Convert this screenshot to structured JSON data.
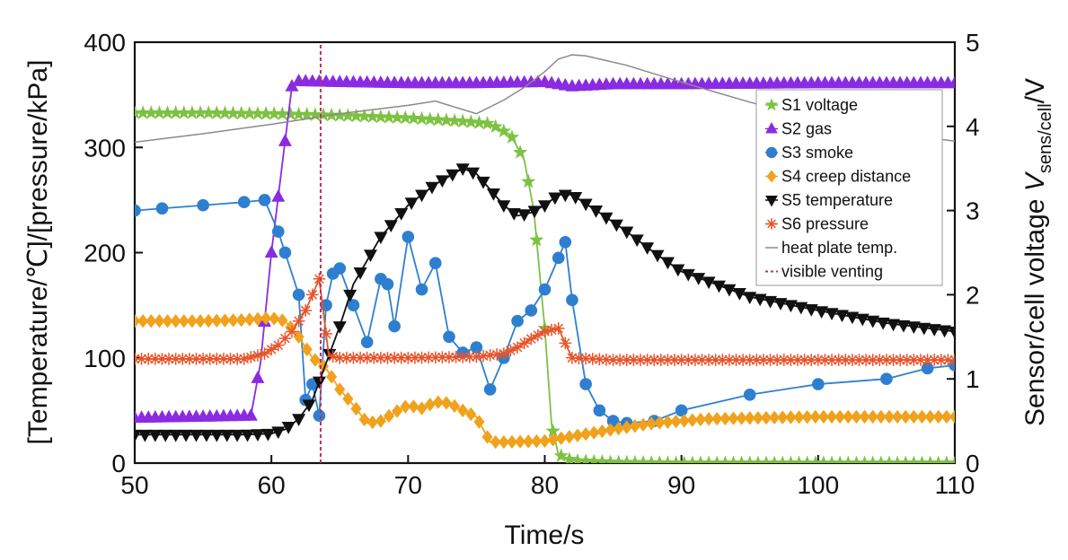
{
  "chart_data": {
    "type": "line",
    "xlabel": "Time/s",
    "ylabel_left": "[Temperature/℃]/[pressure/kPa]",
    "ylabel_right_parts": {
      "prefix": "Sensor/cell voltage ",
      "var": "V",
      "sub": "sens/cell",
      "suffix": "/V"
    },
    "xlim": [
      50,
      110
    ],
    "ylim_left": [
      0,
      400
    ],
    "ylim_right": [
      0,
      5
    ],
    "x_ticks": [
      50,
      60,
      70,
      80,
      90,
      100,
      110
    ],
    "y_left_ticks": [
      0,
      100,
      200,
      300,
      400
    ],
    "y_right_ticks": [
      0,
      1,
      2,
      3,
      4,
      5
    ],
    "grid": false,
    "legend_position": "top-right",
    "series": [
      {
        "name": "S1 voltage",
        "axis": "right",
        "color": "#7dc242",
        "marker": "star",
        "x": [
          50,
          55,
          60,
          65,
          70,
          74,
          76,
          77.5,
          78.5,
          79.2,
          80,
          80.5,
          81,
          82,
          85,
          90,
          100,
          110
        ],
        "y": [
          4.16,
          4.16,
          4.15,
          4.13,
          4.1,
          4.06,
          4.03,
          3.9,
          3.6,
          3.0,
          1.6,
          0.45,
          0.1,
          0.03,
          0.01,
          0,
          0,
          0
        ]
      },
      {
        "name": "S2 gas",
        "axis": "left",
        "color": "#8a2be2",
        "marker": "triangle-up",
        "x": [
          50,
          55,
          58.5,
          59.2,
          60,
          60.8,
          61.5,
          62,
          65,
          70,
          75,
          80,
          82,
          85,
          90,
          100,
          110
        ],
        "y": [
          43,
          44,
          45,
          95,
          200,
          285,
          358,
          363,
          362,
          361,
          361,
          362,
          358,
          360,
          360,
          361,
          361
        ]
      },
      {
        "name": "S3 smoke",
        "axis": "left",
        "color": "#2f7fd0",
        "marker": "circle",
        "x": [
          50,
          52,
          55,
          58,
          59.5,
          60.5,
          61,
          62,
          62.5,
          63,
          63.5,
          64,
          64.5,
          65,
          66,
          67,
          68,
          68.5,
          69,
          70,
          71,
          72,
          73,
          74,
          75,
          76,
          77,
          78,
          79,
          80,
          81,
          81.5,
          82,
          83,
          84,
          85,
          86,
          88,
          90,
          95,
          100,
          105,
          108,
          110
        ],
        "y": [
          240,
          242,
          245,
          248,
          250,
          220,
          200,
          160,
          60,
          75,
          45,
          150,
          180,
          185,
          150,
          115,
          175,
          170,
          130,
          215,
          165,
          190,
          120,
          105,
          110,
          70,
          100,
          135,
          145,
          165,
          195,
          210,
          155,
          75,
          50,
          40,
          38,
          40,
          50,
          65,
          75,
          80,
          90,
          93
        ]
      },
      {
        "name": "S4 creep distance",
        "axis": "left",
        "color": "#f0a21c",
        "marker": "diamond",
        "x": [
          50,
          55,
          58,
          60,
          61,
          62,
          63,
          64,
          65,
          66,
          67,
          68,
          69,
          70,
          71,
          72,
          73,
          74,
          75,
          76,
          77,
          80,
          85,
          88,
          92,
          100,
          110
        ],
        "y": [
          135,
          135,
          136,
          138,
          135,
          120,
          100,
          90,
          70,
          55,
          38,
          40,
          48,
          55,
          52,
          58,
          57,
          50,
          44,
          20,
          20,
          21,
          32,
          38,
          42,
          44,
          44
        ]
      },
      {
        "name": "S5 temperature",
        "axis": "left",
        "color": "#111111",
        "marker": "triangle-down",
        "x": [
          50,
          55,
          58,
          60,
          61,
          62,
          63,
          64,
          65,
          66,
          68,
          70,
          72,
          74,
          75,
          76,
          77,
          78,
          79,
          80,
          81,
          82,
          84,
          86,
          88,
          90,
          95,
          100,
          105,
          110
        ],
        "y": [
          27,
          27,
          27,
          28,
          32,
          42,
          60,
          95,
          130,
          170,
          215,
          245,
          265,
          280,
          275,
          260,
          245,
          235,
          238,
          245,
          255,
          255,
          238,
          220,
          200,
          182,
          158,
          145,
          133,
          125
        ]
      },
      {
        "name": "S6 pressure",
        "axis": "left",
        "color": "#e8542b",
        "marker": "asterisk",
        "x": [
          50,
          55,
          58,
          59.5,
          60.5,
          61.5,
          62.5,
          63.5,
          64.2,
          65,
          70,
          75,
          77,
          78,
          79,
          80,
          81,
          82,
          85,
          90,
          100,
          110
        ],
        "y": [
          99,
          99,
          99,
          104,
          112,
          125,
          145,
          175,
          102,
          100,
          100,
          101,
          104,
          110,
          118,
          125,
          128,
          100,
          98,
          98,
          98,
          98
        ]
      },
      {
        "name": "heat plate temp.",
        "axis": "left",
        "color": "#8a8a8a",
        "marker": "none",
        "x": [
          50,
          55,
          60,
          65,
          70,
          72,
          73,
          75,
          77,
          78.5,
          80,
          81,
          82,
          83,
          84,
          86,
          88,
          90,
          95,
          100,
          105,
          110
        ],
        "y": [
          305,
          313,
          322,
          332,
          340,
          344,
          340,
          332,
          345,
          357,
          372,
          384,
          388,
          387,
          384,
          378,
          370,
          362,
          343,
          326,
          314,
          306
        ]
      },
      {
        "name": "visible venting",
        "axis": "left",
        "color": "#c0305e",
        "marker": "vline",
        "x": [
          63.6,
          63.6
        ],
        "y": [
          0,
          400
        ]
      }
    ]
  }
}
